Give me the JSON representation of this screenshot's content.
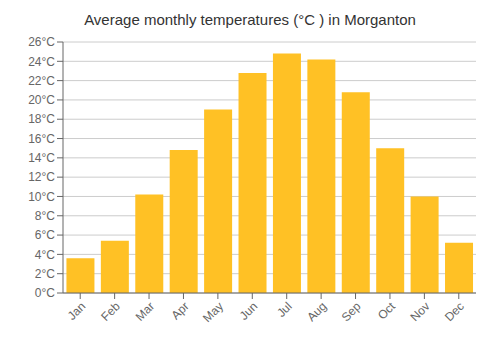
{
  "chart_data": {
    "type": "bar",
    "title": "Average monthly temperatures (°C ) in Morganton",
    "categories": [
      "Jan",
      "Feb",
      "Mar",
      "Apr",
      "May",
      "Jun",
      "Jul",
      "Aug",
      "Sep",
      "Oct",
      "Nov",
      "Dec"
    ],
    "values": [
      3.6,
      5.4,
      10.2,
      14.8,
      19.0,
      22.8,
      24.8,
      24.2,
      20.8,
      15.0,
      10.0,
      5.2
    ],
    "color": "#FFC125",
    "ylim": [
      0,
      26
    ],
    "yticks": [
      {
        "value": 0,
        "label": "0°C"
      },
      {
        "value": 2,
        "label": "2°C"
      },
      {
        "value": 4,
        "label": "4°C"
      },
      {
        "value": 6,
        "label": "6°C"
      },
      {
        "value": 8,
        "label": "8°C"
      },
      {
        "value": 10,
        "label": "10°C"
      },
      {
        "value": 12,
        "label": "12°C"
      },
      {
        "value": 14,
        "label": "14°C"
      },
      {
        "value": 16,
        "label": "16°C"
      },
      {
        "value": 18,
        "label": "18°C"
      },
      {
        "value": 20,
        "label": "20°C"
      },
      {
        "value": 22,
        "label": "22°C"
      },
      {
        "value": 24,
        "label": "24°C"
      },
      {
        "value": 26,
        "label": "26°C"
      }
    ],
    "grid": true
  }
}
